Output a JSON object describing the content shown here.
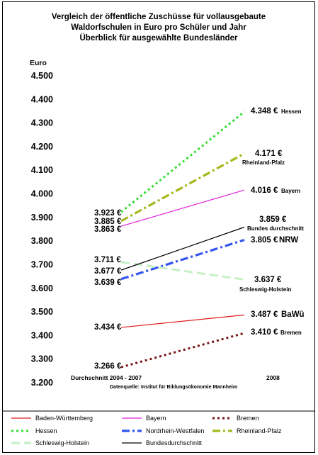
{
  "chart_data": {
    "type": "line",
    "title_lines": [
      "Vergleich der öffentliche Zuschüsse für vollausgebaute",
      "Waldorfschulen in Euro pro Schüler und Jahr",
      "Überblick für ausgewählte Bundesländer"
    ],
    "ylabel": "Euro",
    "ylim": [
      3200,
      4500
    ],
    "yticks": [
      "3.200",
      "3.300",
      "3.400",
      "3.500",
      "3.600",
      "3.700",
      "3.800",
      "3.900",
      "4.000",
      "4.100",
      "4.200",
      "4.300",
      "4.400",
      "4.500"
    ],
    "categories": [
      "Durchschnitt 2004 - 2007",
      "2008"
    ],
    "source": "Datenquelle: Institut für Bildungsökonomie Mannheim",
    "series": [
      {
        "name": "Baden-Württemberg",
        "values": [
          3434,
          3487
        ],
        "color": "#e21b1b",
        "style": "solid",
        "start_label": "3.434 €",
        "end_label": "3.487 €",
        "end_name": "BaWü"
      },
      {
        "name": "Bayern",
        "values": [
          3863,
          4016
        ],
        "color": "#e020d8",
        "style": "solid",
        "start_label": "3.863 €",
        "end_label": "4.016 €",
        "end_name": "Bayern"
      },
      {
        "name": "Bremen",
        "values": [
          3266,
          3410
        ],
        "color": "#7a1414",
        "style": "dotted",
        "start_label": "3.266 €",
        "end_label": "3.410 €",
        "end_name": "Bremen"
      },
      {
        "name": "Hessen",
        "values": [
          3923,
          4348
        ],
        "color": "#33dd33",
        "style": "dotted",
        "start_label": "3.923 €",
        "end_label": "4.348 €",
        "end_name": "Hessen"
      },
      {
        "name": "Nordrhein-Westfalen",
        "values": [
          3639,
          3805
        ],
        "color": "#3355ee",
        "style": "dashdot",
        "start_label": "3.639 €",
        "end_label": "3.805 €",
        "end_name": "NRW"
      },
      {
        "name": "Rheinland-Pfalz",
        "values": [
          3885,
          4171
        ],
        "color": "#a6b81e",
        "style": "dashdot",
        "start_label": "3.885 €",
        "end_label": "4.171 €",
        "end_name": "Rheinland-Pfalz"
      },
      {
        "name": "Schleswig-Holstein",
        "values": [
          3711,
          3637
        ],
        "color": "#c6efc6",
        "style": "dashed",
        "start_label": "3.711 €",
        "end_label": "3.637 €",
        "end_name": "Schleswig-Holstein"
      },
      {
        "name": "Bundesdurchschnitt",
        "values": [
          3677,
          3859
        ],
        "color": "#000000",
        "style": "solid",
        "start_label": "3.677 €",
        "end_label": "3.859 €",
        "end_name": "Bundes durchschnitt"
      }
    ],
    "legend_position": "bottom",
    "grid": false
  }
}
